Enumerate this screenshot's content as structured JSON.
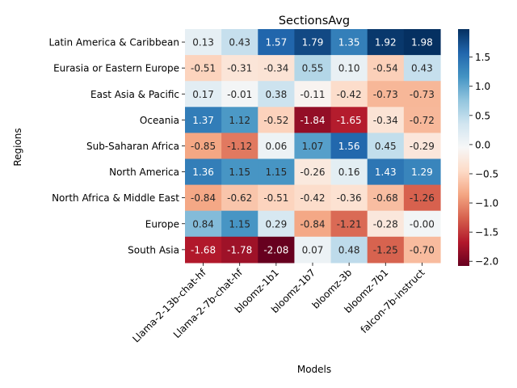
{
  "chart_data": {
    "type": "heatmap",
    "title": "SectionsAvg",
    "xlabel": "Models",
    "ylabel": "Regions",
    "x_categories": [
      "Llama-2-13b-chat-hf",
      "Llama-2-7b-chat-hf",
      "bloomz-1b1",
      "bloomz-1b7",
      "bloomz-3b",
      "bloomz-7b1",
      "falcon-7b-instruct"
    ],
    "y_categories": [
      "Latin America & Caribbean",
      "Eurasia or Eastern Europe",
      "East Asia & Pacific",
      "Oceania",
      "Sub-Saharan Africa",
      "North America",
      "North Africa & Middle East",
      "Europe",
      "South Asia"
    ],
    "values": [
      [
        0.13,
        0.43,
        1.57,
        1.79,
        1.35,
        1.92,
        1.98
      ],
      [
        -0.51,
        -0.31,
        -0.34,
        0.55,
        0.1,
        -0.54,
        0.43
      ],
      [
        0.17,
        -0.01,
        0.38,
        -0.11,
        -0.42,
        -0.73,
        -0.73
      ],
      [
        1.37,
        1.12,
        -0.52,
        -1.84,
        -1.65,
        -0.34,
        -0.72
      ],
      [
        -0.85,
        -1.12,
        0.06,
        1.07,
        1.56,
        0.45,
        -0.29
      ],
      [
        1.36,
        1.15,
        1.15,
        -0.26,
        0.16,
        1.43,
        1.29
      ],
      [
        -0.84,
        -0.62,
        -0.51,
        -0.42,
        -0.36,
        -0.68,
        -1.26
      ],
      [
        0.84,
        1.15,
        0.29,
        -0.84,
        -1.21,
        -0.28,
        -0.0
      ],
      [
        -1.68,
        -1.78,
        -2.08,
        0.07,
        0.48,
        -1.25,
        -0.7
      ]
    ],
    "colormap": "RdBu",
    "vmin": -2.08,
    "vmax": 1.98,
    "colorbar_ticks": [
      "1.5",
      "1.0",
      "0.5",
      "0.0",
      "-0.5",
      "-1.0",
      "-1.5",
      "-2.0"
    ],
    "colorbar_values": [
      1.5,
      1.0,
      0.5,
      0.0,
      -0.5,
      -1.0,
      -1.5,
      -2.0
    ],
    "colorbar_minus": "−"
  }
}
